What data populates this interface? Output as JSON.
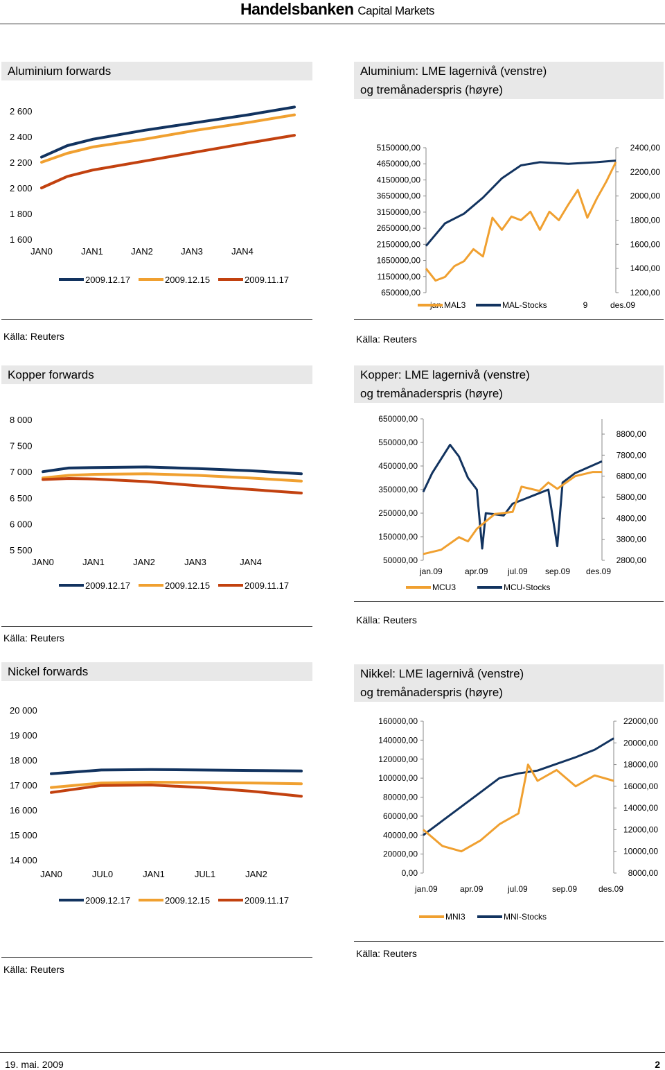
{
  "header": {
    "brand": "Handelsbanken",
    "brand_sub": "Capital Markets"
  },
  "footer": {
    "date": "19. mai. 2009",
    "page": "2"
  },
  "colors": {
    "navy": "#12335f",
    "orange": "#f0a030",
    "red": "#c2410f",
    "grey_title": "#e8e8e8"
  },
  "panels": {
    "alu_fwd": {
      "title": "Aluminium forwards",
      "source": "Källa: Reuters",
      "chart_data": {
        "type": "line",
        "title": "Aluminium forwards",
        "x": [
          "JAN0",
          "JAN1",
          "JAN2",
          "JAN3",
          "JAN4"
        ],
        "yticks": [
          "2 600",
          "2 400",
          "2 200",
          "2 000",
          "1 800",
          "1 600"
        ],
        "ylim": [
          1600,
          2600
        ],
        "series": [
          {
            "name": "2009.12.17",
            "color": "#12335f",
            "points": [
              [
                0,
                2240
              ],
              [
                0.5,
                2330
              ],
              [
                1,
                2380
              ],
              [
                2,
                2450
              ],
              [
                3,
                2510
              ],
              [
                4,
                2570
              ],
              [
                4.9,
                2630
              ]
            ]
          },
          {
            "name": "2009.12.15",
            "color": "#f0a030",
            "points": [
              [
                0,
                2200
              ],
              [
                0.5,
                2270
              ],
              [
                1,
                2320
              ],
              [
                2,
                2380
              ],
              [
                3,
                2450
              ],
              [
                4,
                2510
              ],
              [
                4.9,
                2570
              ]
            ]
          },
          {
            "name": "2009.11.17",
            "color": "#c2410f",
            "points": [
              [
                0,
                2000
              ],
              [
                0.5,
                2090
              ],
              [
                1,
                2140
              ],
              [
                2,
                2210
              ],
              [
                3,
                2280
              ],
              [
                4,
                2350
              ],
              [
                4.9,
                2410
              ]
            ]
          }
        ]
      }
    },
    "alu_lme": {
      "title1": "Aluminium: LME lagernivå (venstre)",
      "title2": "og tremånaderspris (høyre)",
      "source": "Källa: Reuters",
      "chart_data": {
        "type": "line",
        "yticks_left": [
          "5150000,00",
          "4650000,00",
          "4150000,00",
          "3650000,00",
          "3150000,00",
          "2650000,00",
          "2150000,00",
          "1650000,00",
          "1150000,00",
          "650000,00"
        ],
        "yticks_right": [
          "2400,00",
          "2200,00",
          "2000,00",
          "1800,00",
          "1600,00",
          "1400,00",
          "1200,00"
        ],
        "xticks": [
          "jan.",
          "9",
          "des.09"
        ],
        "legend": [
          "MAL3",
          "MAL-Stocks"
        ],
        "series": [
          {
            "name": "MAL-Stocks",
            "color": "#12335f",
            "points": [
              [
                0,
                2100000
              ],
              [
                0.1,
                2800000
              ],
              [
                0.2,
                3100000
              ],
              [
                0.3,
                3600000
              ],
              [
                0.4,
                4200000
              ],
              [
                0.5,
                4600000
              ],
              [
                0.6,
                4700000
              ],
              [
                0.75,
                4650000
              ],
              [
                0.9,
                4700000
              ],
              [
                1,
                4750000
              ]
            ]
          },
          {
            "name": "MAL3",
            "color": "#f0a030",
            "points": [
              [
                0,
                1400
              ],
              [
                0.05,
                1300
              ],
              [
                0.1,
                1330
              ],
              [
                0.15,
                1420
              ],
              [
                0.2,
                1460
              ],
              [
                0.25,
                1560
              ],
              [
                0.3,
                1500
              ],
              [
                0.35,
                1820
              ],
              [
                0.4,
                1720
              ],
              [
                0.45,
                1830
              ],
              [
                0.5,
                1800
              ],
              [
                0.55,
                1870
              ],
              [
                0.6,
                1720
              ],
              [
                0.65,
                1870
              ],
              [
                0.7,
                1800
              ],
              [
                0.75,
                1930
              ],
              [
                0.8,
                2050
              ],
              [
                0.85,
                1820
              ],
              [
                0.9,
                1980
              ],
              [
                0.95,
                2120
              ],
              [
                1,
                2280
              ]
            ]
          }
        ]
      }
    },
    "cu_fwd": {
      "title": "Kopper forwards",
      "source": "Källa: Reuters",
      "chart_data": {
        "type": "line",
        "title": "Kopper forwards",
        "x": [
          "JAN0",
          "JAN1",
          "JAN2",
          "JAN3",
          "JAN4"
        ],
        "yticks": [
          "8 000",
          "7 500",
          "7 000",
          "6 500",
          "6 000",
          "5 500"
        ],
        "ylim": [
          5500,
          8000
        ],
        "series": [
          {
            "name": "2009.12.17",
            "color": "#12335f",
            "points": [
              [
                0,
                7000
              ],
              [
                0.5,
                7070
              ],
              [
                1,
                7080
              ],
              [
                2,
                7090
              ],
              [
                3,
                7060
              ],
              [
                4,
                7020
              ],
              [
                5,
                6960
              ]
            ]
          },
          {
            "name": "2009.12.15",
            "color": "#f0a030",
            "points": [
              [
                0,
                6880
              ],
              [
                0.5,
                6930
              ],
              [
                1,
                6950
              ],
              [
                2,
                6960
              ],
              [
                3,
                6930
              ],
              [
                4,
                6880
              ],
              [
                5,
                6820
              ]
            ]
          },
          {
            "name": "2009.11.17",
            "color": "#c2410f",
            "points": [
              [
                0,
                6850
              ],
              [
                0.5,
                6870
              ],
              [
                1,
                6860
              ],
              [
                2,
                6810
              ],
              [
                3,
                6730
              ],
              [
                4,
                6660
              ],
              [
                5,
                6590
              ]
            ]
          }
        ]
      }
    },
    "cu_lme": {
      "title1": "Kopper: LME lagernivå (venstre)",
      "title2": "og tremånaderspris (høyre)",
      "source": "Källa: Reuters",
      "chart_data": {
        "type": "line",
        "yticks_left": [
          "650000,00",
          "550000,00",
          "450000,00",
          "350000,00",
          "250000,00",
          "150000,00",
          "50000,00"
        ],
        "yticks_right": [
          "8800,00",
          "7800,00",
          "6800,00",
          "5800,00",
          "4800,00",
          "3800,00",
          "2800,00"
        ],
        "xticks": [
          "jan.09",
          "apr.09",
          "jul.09",
          "sep.09",
          "des.09"
        ],
        "legend": [
          "MCU3",
          "MCU-Stocks"
        ],
        "series": [
          {
            "name": "MCU-Stocks",
            "color": "#12335f",
            "points": [
              [
                0,
                340000
              ],
              [
                0.05,
                420000
              ],
              [
                0.1,
                480000
              ],
              [
                0.15,
                540000
              ],
              [
                0.2,
                490000
              ],
              [
                0.25,
                400000
              ],
              [
                0.3,
                350000
              ],
              [
                0.33,
                100000
              ],
              [
                0.35,
                250000
              ],
              [
                0.45,
                240000
              ],
              [
                0.5,
                290000
              ],
              [
                0.6,
                320000
              ],
              [
                0.7,
                350000
              ],
              [
                0.75,
                110000
              ],
              [
                0.78,
                380000
              ],
              [
                0.85,
                420000
              ],
              [
                1,
                470000
              ]
            ]
          },
          {
            "name": "MCU3",
            "color": "#f0a030",
            "points": [
              [
                0,
                3100
              ],
              [
                0.1,
                3300
              ],
              [
                0.2,
                3900
              ],
              [
                0.25,
                3700
              ],
              [
                0.3,
                4300
              ],
              [
                0.4,
                5000
              ],
              [
                0.5,
                5100
              ],
              [
                0.55,
                6300
              ],
              [
                0.65,
                6100
              ],
              [
                0.7,
                6500
              ],
              [
                0.75,
                6200
              ],
              [
                0.85,
                6800
              ],
              [
                0.95,
                7000
              ],
              [
                1,
                7000
              ]
            ]
          }
        ]
      }
    },
    "ni_fwd": {
      "title": "Nickel forwards",
      "source": "Källa: Reuters",
      "chart_data": {
        "type": "line",
        "title": "Nickel forwards",
        "x": [
          "JAN0",
          "JUL0",
          "JAN1",
          "JUL1",
          "JAN2"
        ],
        "yticks": [
          "20 000",
          "19 000",
          "18 000",
          "17 000",
          "16 000",
          "15 000",
          "14 000"
        ],
        "ylim": [
          14000,
          20000
        ],
        "series": [
          {
            "name": "2009.12.17",
            "color": "#12335f",
            "points": [
              [
                0,
                17450
              ],
              [
                1,
                17600
              ],
              [
                2,
                17620
              ],
              [
                3,
                17600
              ],
              [
                4,
                17580
              ],
              [
                5,
                17560
              ]
            ]
          },
          {
            "name": "2009.12.15",
            "color": "#f0a030",
            "points": [
              [
                0,
                16900
              ],
              [
                1,
                17080
              ],
              [
                2,
                17110
              ],
              [
                3,
                17100
              ],
              [
                4,
                17080
              ],
              [
                5,
                17050
              ]
            ]
          },
          {
            "name": "2009.11.17",
            "color": "#c2410f",
            "points": [
              [
                0,
                16700
              ],
              [
                1,
                16980
              ],
              [
                2,
                17000
              ],
              [
                3,
                16900
              ],
              [
                4,
                16750
              ],
              [
                5,
                16550
              ]
            ]
          }
        ]
      }
    },
    "ni_lme": {
      "title1": "Nikkel: LME lagernivå (venstre)",
      "title2": "og tremånaderspris (høyre)",
      "source": "Källa: Reuters",
      "chart_data": {
        "type": "line",
        "yticks_left": [
          "160000,00",
          "140000,00",
          "120000,00",
          "100000,00",
          "80000,00",
          "60000,00",
          "40000,00",
          "20000,00",
          "0,00"
        ],
        "yticks_right": [
          "22000,00",
          "20000,00",
          "18000,00",
          "16000,00",
          "14000,00",
          "12000,00",
          "10000,00",
          "8000,00"
        ],
        "xticks": [
          "jan.09",
          "apr.09",
          "jul.09",
          "sep.09",
          "des.09"
        ],
        "legend": [
          "MNI3",
          "MNI-Stocks"
        ],
        "series": [
          {
            "name": "MNI-Stocks",
            "color": "#12335f",
            "points": [
              [
                0,
                40000
              ],
              [
                0.1,
                55000
              ],
              [
                0.2,
                70000
              ],
              [
                0.3,
                85000
              ],
              [
                0.4,
                100000
              ],
              [
                0.5,
                105000
              ],
              [
                0.6,
                108000
              ],
              [
                0.7,
                115000
              ],
              [
                0.8,
                122000
              ],
              [
                0.9,
                130000
              ],
              [
                1,
                142000
              ]
            ]
          },
          {
            "name": "MNI3",
            "color": "#f0a030",
            "points": [
              [
                0,
                12000
              ],
              [
                0.1,
                10500
              ],
              [
                0.2,
                10000
              ],
              [
                0.3,
                11000
              ],
              [
                0.4,
                12500
              ],
              [
                0.5,
                13500
              ],
              [
                0.55,
                18000
              ],
              [
                0.6,
                16500
              ],
              [
                0.7,
                17500
              ],
              [
                0.8,
                16000
              ],
              [
                0.9,
                17000
              ],
              [
                1,
                16500
              ]
            ]
          }
        ]
      }
    }
  }
}
